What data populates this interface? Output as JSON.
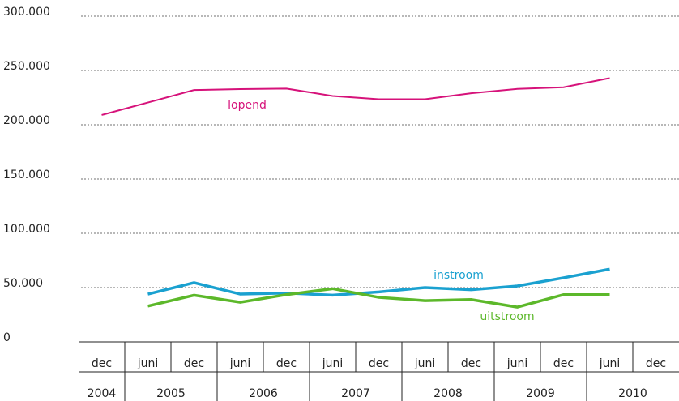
{
  "chart_data": {
    "type": "line",
    "categories": [
      "dec",
      "juni",
      "dec",
      "juni",
      "dec",
      "juni",
      "dec",
      "juni",
      "dec",
      "juni",
      "dec",
      "juni",
      "dec"
    ],
    "years": [
      "2004",
      "2005",
      "2005",
      "2006",
      "2006",
      "2007",
      "2007",
      "2008",
      "2008",
      "2009",
      "2009",
      "2010",
      "2010"
    ],
    "series": [
      {
        "name": "lopend",
        "color": "#d6127a",
        "values": [
          209000,
          220500,
          232000,
          232800,
          233300,
          226500,
          223500,
          223500,
          229000,
          233000,
          234500,
          243000,
          null
        ]
      },
      {
        "name": "instroom",
        "color": "#1aa1d0",
        "values": [
          null,
          44000,
          54500,
          44000,
          45000,
          43000,
          46000,
          50000,
          48000,
          51500,
          59000,
          67000,
          null
        ]
      },
      {
        "name": "uitstroom",
        "color": "#5cb82a",
        "values": [
          null,
          33000,
          43000,
          36500,
          43500,
          49000,
          41000,
          38000,
          39000,
          32000,
          43500,
          43500,
          null
        ]
      }
    ],
    "ylim": [
      0,
      300000
    ],
    "yticks": [
      0,
      {
        "value": 50000,
        "label": "50.000"
      },
      {
        "value": 100000,
        "label": "100.000"
      },
      {
        "value": 150000,
        "label": "150.000"
      },
      {
        "value": 200000,
        "label": "200.000"
      },
      {
        "value": 250000,
        "label": "250.000"
      },
      {
        "value": 300000,
        "label": "300.000"
      }
    ],
    "grid": true
  }
}
